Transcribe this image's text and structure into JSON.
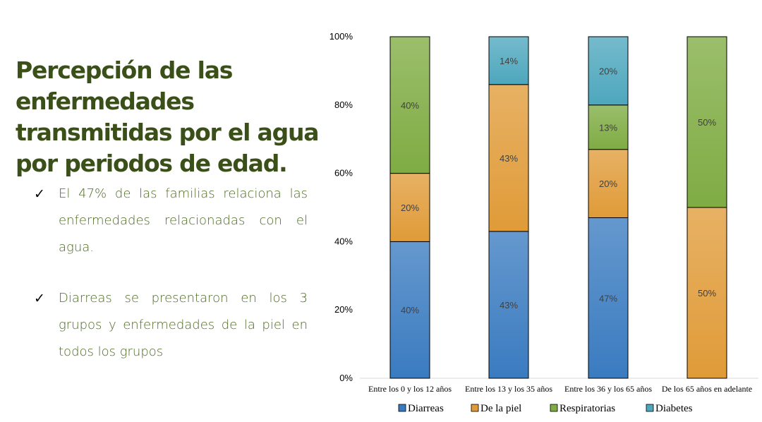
{
  "slide": {
    "title": "Percepción de las enfermedades transmitidas por el agua por periodos de edad.",
    "bullets": [
      "El 47% de las familias relaciona las enfermedades relacionadas con el agua.",
      "Diarreas se presentaron en los 3 grupos y enfermedades de la piel en todos los grupos"
    ],
    "bullet_icon": "checkmark-icon"
  },
  "chart_data": {
    "type": "bar",
    "stacked": true,
    "percent_stacked": true,
    "title": "",
    "xlabel": "",
    "ylabel": "",
    "ylim": [
      0,
      100
    ],
    "yticks": [
      "0%",
      "20%",
      "40%",
      "60%",
      "80%",
      "100%"
    ],
    "categories": [
      "Entre los 0 y los  12 años",
      "Entre los 13 y los 35 años",
      "Entre los 36 y los 65 años",
      "De los 65 años en adelante"
    ],
    "series": [
      {
        "name": "Diarreas",
        "color": "#3a7bc0",
        "values": [
          40,
          43,
          47,
          0
        ],
        "labels": [
          "40%",
          "43%",
          "47%",
          ""
        ]
      },
      {
        "name": "De la piel",
        "color": "#e09b38",
        "values": [
          20,
          43,
          20,
          50
        ],
        "labels": [
          "20%",
          "43%",
          "20%",
          "50%"
        ]
      },
      {
        "name": "Respiratorias",
        "color": "#7fac43",
        "values": [
          40,
          0,
          13,
          50
        ],
        "labels": [
          "40%",
          "",
          "13%",
          "50%"
        ]
      },
      {
        "name": "Diabetes",
        "color": "#4ea7bd",
        "values": [
          0,
          14,
          20,
          0
        ],
        "labels": [
          "",
          "14%",
          "20%",
          ""
        ]
      }
    ],
    "legend": "bottom",
    "grid": false
  }
}
